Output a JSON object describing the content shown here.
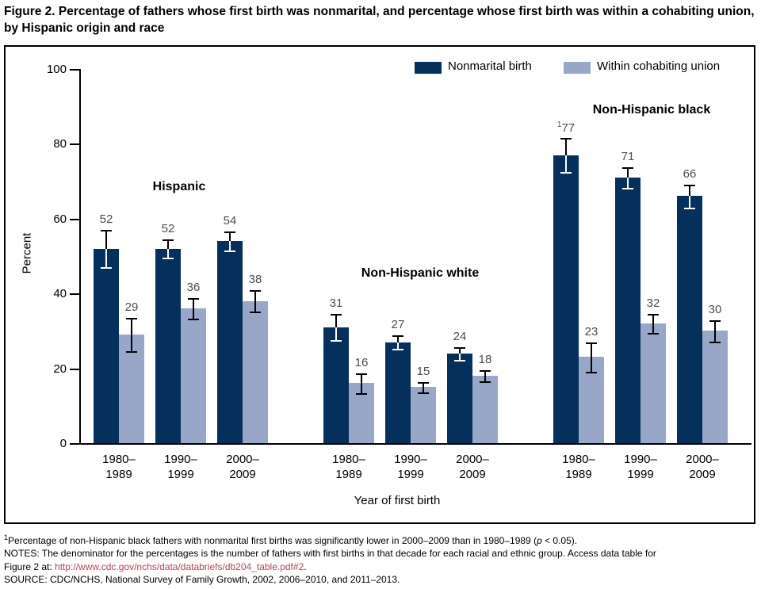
{
  "figure": {
    "title": "Figure 2. Percentage of fathers whose first birth was nonmarital, and percentage whose first birth was within a cohabiting union, by Hispanic origin and race"
  },
  "colors": {
    "bar_dark": "#06305c",
    "bar_light": "#98a7c8",
    "link": "#bf4052",
    "value_label": "#4d4d4d"
  },
  "legend": [
    {
      "label": "Nonmarital birth",
      "color": "#06305c"
    },
    {
      "label": "Within cohabiting union",
      "color": "#98a7c8"
    }
  ],
  "chart_data": {
    "type": "bar",
    "title": "",
    "xlabel": "Year of first birth",
    "ylabel": "Percent",
    "ylim": [
      0,
      100
    ],
    "yticks": [
      0,
      20,
      40,
      60,
      80,
      100
    ],
    "grid": false,
    "legend_position": "top-right",
    "error_bars": true,
    "sections": [
      {
        "label": "Hispanic",
        "categories": [
          [
            "1980–",
            "1989"
          ],
          [
            "1990–",
            "1999"
          ],
          [
            "2000–",
            "2009"
          ]
        ],
        "series": [
          {
            "name": "Nonmarital birth",
            "values": [
              52,
              52,
              54
            ],
            "ci": [
              5,
              2.5,
              2.5
            ],
            "markers": [
              null,
              null,
              null
            ]
          },
          {
            "name": "Within cohabiting union",
            "values": [
              29,
              36,
              38
            ],
            "ci": [
              4.5,
              2.8,
              2.8
            ],
            "markers": [
              null,
              null,
              null
            ]
          }
        ]
      },
      {
        "label": "Non-Hispanic white",
        "categories": [
          [
            "1980–",
            "1989"
          ],
          [
            "1990–",
            "1999"
          ],
          [
            "2000–",
            "2009"
          ]
        ],
        "series": [
          {
            "name": "Nonmarital birth",
            "values": [
              31,
              27,
              24
            ],
            "ci": [
              3.5,
              1.8,
              1.7
            ],
            "markers": [
              null,
              null,
              null
            ]
          },
          {
            "name": "Within cohabiting union",
            "values": [
              16,
              15,
              18
            ],
            "ci": [
              2.7,
              1.4,
              1.5
            ],
            "markers": [
              null,
              null,
              null
            ]
          }
        ]
      },
      {
        "label": "Non-Hispanic black",
        "categories": [
          [
            "1980–",
            "1989"
          ],
          [
            "1990–",
            "1999"
          ],
          [
            "2000–",
            "2009"
          ]
        ],
        "series": [
          {
            "name": "Nonmarital birth",
            "values": [
              77,
              71,
              66
            ],
            "ci": [
              4.5,
              2.8,
              3
            ],
            "markers": [
              "1",
              null,
              null
            ]
          },
          {
            "name": "Within cohabiting union",
            "values": [
              23,
              32,
              30
            ],
            "ci": [
              4,
              2.6,
              2.8
            ],
            "markers": [
              null,
              null,
              null
            ]
          }
        ]
      }
    ]
  },
  "footnotes": {
    "fn1": {
      "sup": "1",
      "pre": "Percentage of non-Hispanic black fathers with nonmarital first births was significantly lower in 2000–2009 than in 1980–1989 (",
      "italic": "p",
      "post": " < 0.05)."
    },
    "notes1": "NOTES: The denominator for the percentages is the number of fathers with first births in that decade for each racial and ethnic group. Access data table for",
    "notes2_pre": "Figure 2 at: ",
    "link_text": "http://www.cdc.gov/nchs/data/databriefs/db204_table.pdf#2",
    "notes2_post": ".",
    "source": "SOURCE: CDC/NCHS, National Survey of Family Growth, 2002, 2006–2010, and 2011–2013."
  }
}
